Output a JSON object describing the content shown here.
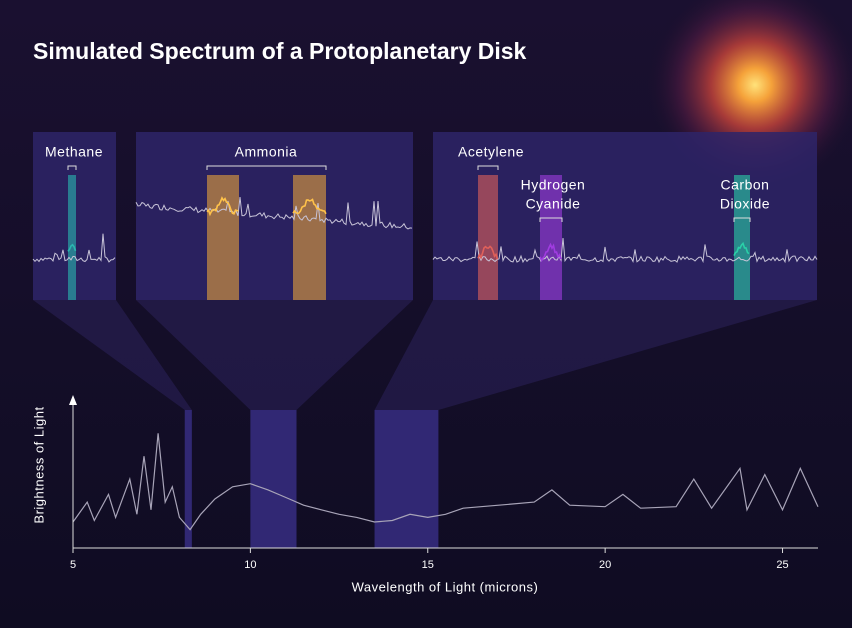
{
  "title": "Simulated Spectrum of a Protoplanetary Disk",
  "zoom_labels": [
    [
      "Methane"
    ],
    [
      "Ammonia"
    ],
    [
      "Acetylene"
    ],
    [
      "Hydrogen",
      "Cyanide"
    ],
    [
      "Carbon",
      "Dioxide"
    ]
  ],
  "chart_data": {
    "type": "line",
    "x": [
      5.0,
      5.4,
      5.6,
      6.0,
      6.2,
      6.6,
      6.8,
      7.0,
      7.2,
      7.4,
      7.6,
      7.8,
      8.0,
      8.3,
      8.6,
      9.0,
      9.5,
      10.0,
      10.5,
      11.0,
      11.5,
      12.0,
      12.5,
      13.0,
      13.5,
      14.0,
      14.5,
      15.0,
      15.5,
      16.0,
      17.0,
      18.0,
      18.5,
      19.0,
      20.0,
      20.5,
      21.0,
      22.0,
      22.5,
      23.0,
      23.8,
      24.0,
      24.5,
      25.0,
      25.5,
      26.0
    ],
    "values": [
      0.17,
      0.3,
      0.18,
      0.35,
      0.2,
      0.45,
      0.22,
      0.6,
      0.25,
      0.75,
      0.3,
      0.4,
      0.2,
      0.12,
      0.22,
      0.32,
      0.4,
      0.42,
      0.38,
      0.33,
      0.28,
      0.25,
      0.22,
      0.2,
      0.17,
      0.18,
      0.22,
      0.2,
      0.22,
      0.26,
      0.28,
      0.3,
      0.38,
      0.28,
      0.27,
      0.35,
      0.26,
      0.27,
      0.45,
      0.26,
      0.52,
      0.25,
      0.48,
      0.25,
      0.52,
      0.27
    ],
    "color": "#a8a4b8",
    "xlim": [
      5,
      26
    ],
    "xticks": [
      5,
      10,
      15,
      20,
      25
    ],
    "ylim": [
      0,
      1
    ],
    "xlabel": "Wavelength of Light (microns)",
    "ylabel": "Brightness of Light",
    "highlight_ranges": [
      [
        8.15,
        8.35
      ],
      [
        10,
        11.3
      ],
      [
        13.5,
        15.3
      ]
    ]
  }
}
